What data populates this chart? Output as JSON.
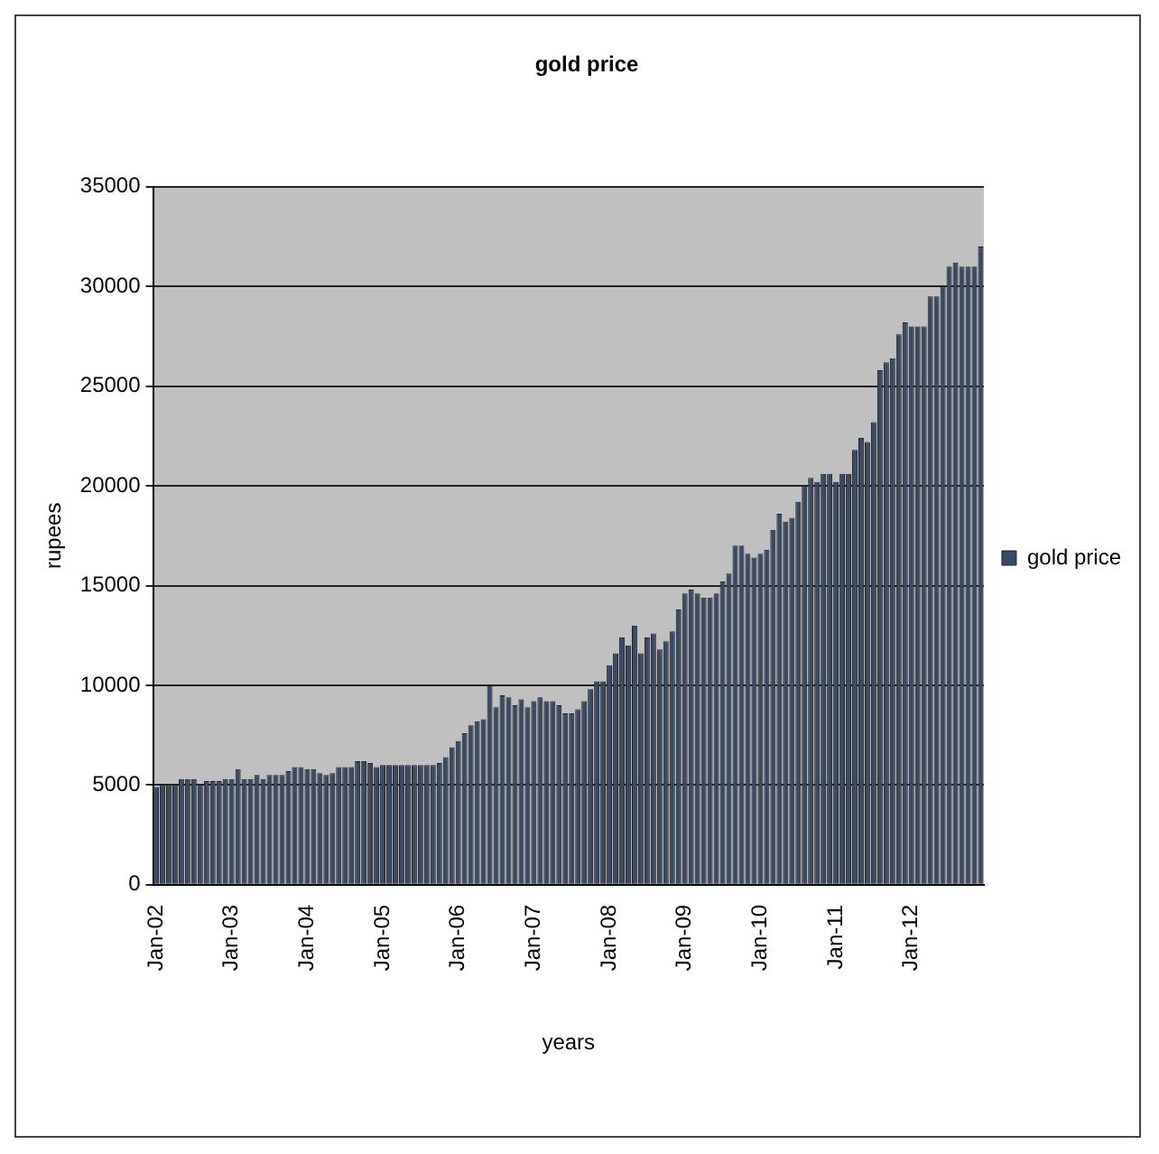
{
  "chart_data": {
    "type": "bar",
    "title": "gold price",
    "xlabel": "years",
    "ylabel": "rupees",
    "categories": [
      "Jan-02",
      null,
      null,
      null,
      null,
      null,
      null,
      null,
      null,
      null,
      null,
      null,
      "Jan-03",
      null,
      null,
      null,
      null,
      null,
      null,
      null,
      null,
      null,
      null,
      null,
      "Jan-04",
      null,
      null,
      null,
      null,
      null,
      null,
      null,
      null,
      null,
      null,
      null,
      "Jan-05",
      null,
      null,
      null,
      null,
      null,
      null,
      null,
      null,
      null,
      null,
      null,
      "Jan-06",
      null,
      null,
      null,
      null,
      null,
      null,
      null,
      null,
      null,
      null,
      null,
      "Jan-07",
      null,
      null,
      null,
      null,
      null,
      null,
      null,
      null,
      null,
      null,
      null,
      "Jan-08",
      null,
      null,
      null,
      null,
      null,
      null,
      null,
      null,
      null,
      null,
      null,
      "Jan-09",
      null,
      null,
      null,
      null,
      null,
      null,
      null,
      null,
      null,
      null,
      null,
      "Jan-10",
      null,
      null,
      null,
      null,
      null,
      null,
      null,
      null,
      null,
      null,
      null,
      "Jan-11",
      null,
      null,
      null,
      null,
      null,
      null,
      null,
      null,
      null,
      null,
      null,
      "Jan-12",
      null,
      null,
      null,
      null,
      null,
      null,
      null,
      null,
      null,
      null,
      null
    ],
    "series": [
      {
        "name": "gold price",
        "color": "#3a4a66",
        "values": [
          4900,
          5000,
          5000,
          5000,
          5300,
          5300,
          5300,
          5000,
          5200,
          5200,
          5200,
          5300,
          5300,
          5800,
          5300,
          5300,
          5500,
          5300,
          5500,
          5500,
          5500,
          5700,
          5900,
          5900,
          5800,
          5800,
          5600,
          5500,
          5600,
          5900,
          5900,
          5900,
          6200,
          6200,
          6100,
          5900,
          6000,
          6000,
          6000,
          6000,
          6000,
          6000,
          6000,
          6000,
          6000,
          6100,
          6400,
          6900,
          7200,
          7600,
          8000,
          8200,
          8300,
          10000,
          8900,
          9500,
          9400,
          9000,
          9300,
          8900,
          9200,
          9400,
          9200,
          9200,
          9000,
          8600,
          8600,
          8800,
          9200,
          9800,
          10200,
          10200,
          11000,
          11600,
          12400,
          12000,
          13000,
          11600,
          12400,
          12600,
          11800,
          12200,
          12700,
          13800,
          14600,
          14800,
          14600,
          14400,
          14400,
          14600,
          15200,
          15600,
          17000,
          17000,
          16600,
          16400,
          16600,
          16800,
          17800,
          18600,
          18200,
          18400,
          19200,
          20000,
          20400,
          20200,
          20600,
          20600,
          20200,
          20600,
          20600,
          21800,
          22400,
          22200,
          23200,
          25800,
          26200,
          26400,
          27600,
          28200,
          28000,
          28000,
          28000,
          29500,
          29500,
          30000,
          31000,
          31200,
          31000,
          31000,
          31000,
          32000
        ]
      }
    ],
    "ylim": [
      0,
      35000
    ],
    "yticks": [
      0,
      5000,
      10000,
      15000,
      20000,
      25000,
      30000,
      35000
    ],
    "grid": "y",
    "legend": "right"
  }
}
